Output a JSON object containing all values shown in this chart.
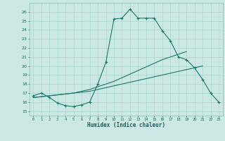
{
  "xlabel": "Humidex (Indice chaleur)",
  "bg_color": "#cce8e4",
  "line_color": "#1a7a6e",
  "grid_color": "#aad4cf",
  "xlim": [
    -0.5,
    23.5
  ],
  "ylim": [
    14.5,
    27.0
  ],
  "xticks": [
    0,
    1,
    2,
    3,
    4,
    5,
    6,
    7,
    8,
    9,
    10,
    11,
    12,
    13,
    14,
    15,
    16,
    17,
    18,
    19,
    20,
    21,
    22,
    23
  ],
  "yticks": [
    15,
    16,
    17,
    18,
    19,
    20,
    21,
    22,
    23,
    24,
    25,
    26
  ],
  "line1_x": [
    0,
    1,
    2,
    3,
    4,
    5,
    6,
    7,
    8,
    9,
    10,
    11,
    12,
    13,
    14,
    15,
    16,
    17,
    18,
    19,
    20,
    21,
    22,
    23
  ],
  "line1_y": [
    16.7,
    17.0,
    16.5,
    15.9,
    15.6,
    15.5,
    15.7,
    16.0,
    18.0,
    20.4,
    25.2,
    25.3,
    26.3,
    25.3,
    25.3,
    25.3,
    23.9,
    22.8,
    21.0,
    20.7,
    19.8,
    18.5,
    17.0,
    16.0
  ],
  "line2_x": [
    0,
    1,
    2,
    3,
    4,
    5,
    6,
    7,
    8,
    9,
    10,
    11,
    12,
    13,
    14,
    15,
    16,
    17,
    18,
    19,
    20,
    21
  ],
  "line2_y": [
    16.5,
    16.6,
    16.7,
    16.8,
    16.9,
    17.0,
    17.1,
    17.2,
    17.4,
    17.6,
    17.8,
    18.0,
    18.2,
    18.4,
    18.6,
    18.8,
    19.0,
    19.2,
    19.4,
    19.6,
    19.8,
    20.0
  ],
  "line3_x": [
    0,
    1,
    2,
    3,
    4,
    5,
    6,
    7,
    8,
    9,
    10,
    11,
    12,
    13,
    14,
    15,
    16,
    17,
    18,
    19
  ],
  "line3_y": [
    16.5,
    16.6,
    16.7,
    16.8,
    16.9,
    17.0,
    17.2,
    17.4,
    17.7,
    18.0,
    18.3,
    18.7,
    19.1,
    19.5,
    19.9,
    20.3,
    20.7,
    21.0,
    21.3,
    21.6
  ]
}
